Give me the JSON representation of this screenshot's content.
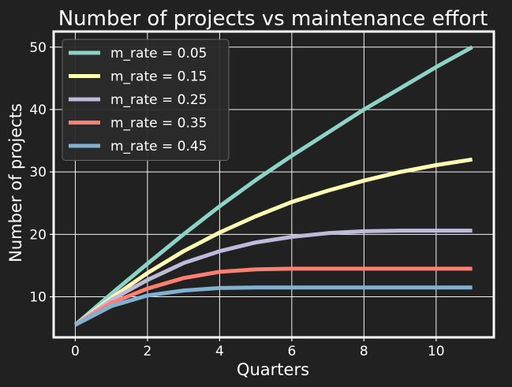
{
  "chart_data": {
    "type": "line",
    "title": "Number of projects vs maintenance effort",
    "xlabel": "Quarters",
    "ylabel": "Number of projects",
    "xlim": [
      -0.6,
      11.6
    ],
    "ylim": [
      3.5,
      52.5
    ],
    "xticks": [
      0,
      2,
      4,
      6,
      8,
      10
    ],
    "yticks": [
      10,
      20,
      30,
      40,
      50
    ],
    "grid": true,
    "legend_position": "top-left",
    "x": [
      0,
      1,
      2,
      3,
      4,
      5,
      6,
      7,
      8,
      9,
      10,
      11
    ],
    "series": [
      {
        "name": "m_rate = 0.05",
        "color": "#8dd3c7",
        "values": [
          5.5,
          10.5,
          15.3,
          20.0,
          24.5,
          28.7,
          32.6,
          36.3,
          40.0,
          43.4,
          46.8,
          50.0
        ]
      },
      {
        "name": "m_rate = 0.15",
        "color": "#ffffb3",
        "values": [
          5.5,
          9.8,
          13.8,
          17.3,
          20.3,
          22.9,
          25.2,
          27.0,
          28.6,
          30.0,
          31.1,
          32.0
        ]
      },
      {
        "name": "m_rate = 0.25",
        "color": "#bebada",
        "values": [
          5.5,
          9.5,
          12.7,
          15.4,
          17.3,
          18.7,
          19.6,
          20.2,
          20.5,
          20.6,
          20.6,
          20.6
        ]
      },
      {
        "name": "m_rate = 0.35",
        "color": "#fb8072",
        "values": [
          5.5,
          9.0,
          11.3,
          13.0,
          14.0,
          14.4,
          14.5,
          14.5,
          14.5,
          14.5,
          14.5,
          14.5
        ]
      },
      {
        "name": "m_rate = 0.45",
        "color": "#80b1d3",
        "values": [
          5.5,
          8.5,
          10.2,
          11.0,
          11.4,
          11.5,
          11.5,
          11.5,
          11.5,
          11.5,
          11.5,
          11.5
        ]
      }
    ]
  }
}
